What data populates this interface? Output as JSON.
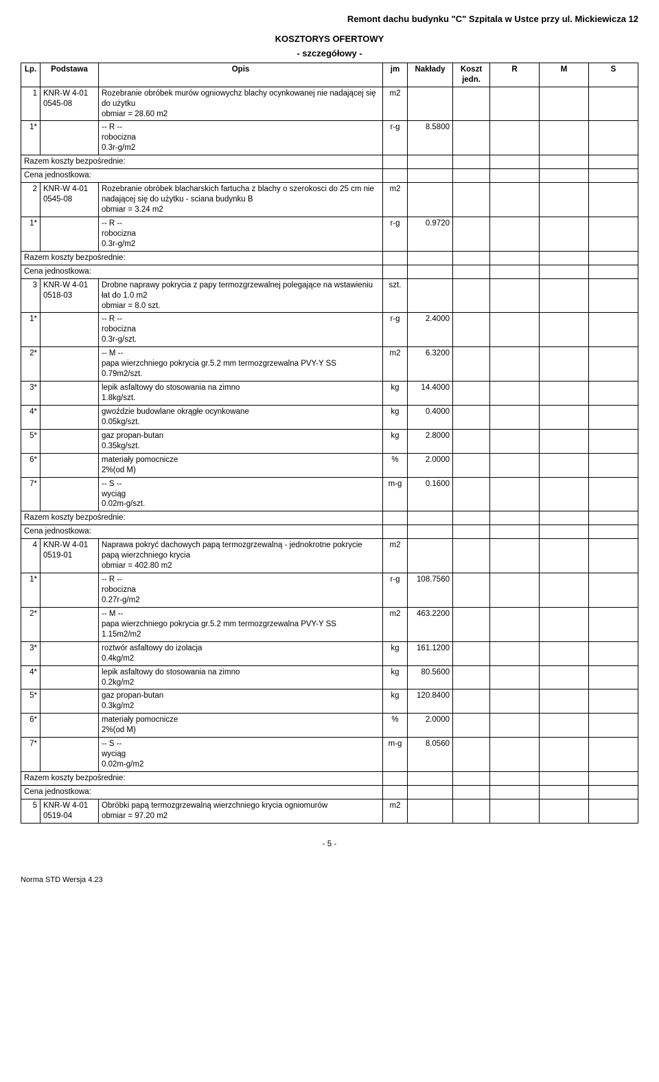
{
  "header": {
    "title": "Remont dachu budynku \"C\" Szpitala w Ustce przy ul. Mickiewicza 12",
    "subtitle1": "KOSZTORYS OFERTOWY",
    "subtitle2": "- szczegółowy -"
  },
  "columns": {
    "lp": "Lp.",
    "podstawa": "Podstawa",
    "opis": "Opis",
    "jm": "jm",
    "naklady": "Nakłady",
    "koszt_jedn": "Koszt jedn.",
    "r": "R",
    "m": "M",
    "s": "S"
  },
  "labels": {
    "razem": "Razem koszty bezpośrednie:",
    "cena": "Cena jednostkowa:",
    "r_hdr": "-- R --",
    "m_hdr": "-- M --",
    "s_hdr": "-- S --"
  },
  "rows": [
    {
      "lp": "1",
      "pod_l1": "KNR-W 4-01",
      "pod_l2": "0545-08",
      "opis": "Rozebranie obróbek murów ogniowychz blachy ocynkowanej nie nadającej się do użytku",
      "obmiar": "obmiar  = 28.60 m2",
      "jm": "m2"
    },
    {
      "sec": "R",
      "items": [
        {
          "lp": "1*",
          "opis": "robocizna",
          "rate": "0.3r-g/m2",
          "jm": "r-g",
          "nak": "8.5800"
        }
      ]
    },
    {
      "razem_cena": true
    },
    {
      "lp": "2",
      "pod_l1": "KNR-W 4-01",
      "pod_l2": "0545-08",
      "opis": "Rozebranie obróbek blacharskich fartucha z blachy o szerokosci do 25 cm nie nadającej się do użytku - sciana budynku B",
      "obmiar": "obmiar  = 3.24 m2",
      "jm": "m2"
    },
    {
      "sec": "R",
      "items": [
        {
          "lp": "1*",
          "opis": "robocizna",
          "rate": "0.3r-g/m2",
          "jm": "r-g",
          "nak": "0.9720"
        }
      ]
    },
    {
      "razem_cena": true
    },
    {
      "lp": "3",
      "pod_l1": "KNR-W 4-01",
      "pod_l2": "0518-03",
      "opis": "Drobne naprawy pokrycia z papy termozgrzewalnej polegające na wstawieniu łat do 1.0 m2",
      "obmiar": "obmiar  = 8.0 szt.",
      "jm": "szt."
    },
    {
      "sec": "R",
      "items": [
        {
          "lp": "1*",
          "opis": "robocizna",
          "rate": "0.3r-g/szt.",
          "jm": "r-g",
          "nak": "2.4000"
        }
      ]
    },
    {
      "sec": "M",
      "items": [
        {
          "lp": "2*",
          "opis": "papa wierzchniego pokrycia gr.5.2 mm termozgrzewalna PVY-Y SS",
          "rate": "0.79m2/szt.",
          "jm": "m2",
          "nak": "6.3200"
        },
        {
          "lp": "3*",
          "opis": "lepik asfaltowy do stosowania na zimno",
          "rate": "1.8kg/szt.",
          "jm": "kg",
          "nak": "14.4000"
        },
        {
          "lp": "4*",
          "opis": "gwoździe budowlane okrągłe ocynkowane",
          "rate": "0.05kg/szt.",
          "jm": "kg",
          "nak": "0.4000"
        },
        {
          "lp": "5*",
          "opis": "gaz propan-butan",
          "rate": "0.35kg/szt.",
          "jm": "kg",
          "nak": "2.8000"
        },
        {
          "lp": "6*",
          "opis": "materiały pomocnicze",
          "rate": "2%(od M)",
          "jm": "%",
          "nak": "2.0000"
        }
      ]
    },
    {
      "sec": "S",
      "items": [
        {
          "lp": "7*",
          "opis": "wyciąg",
          "rate": "0.02m-g/szt.",
          "jm": "m-g",
          "nak": "0.1600"
        }
      ]
    },
    {
      "razem_cena": true
    },
    {
      "lp": "4",
      "pod_l1": "KNR-W 4-01",
      "pod_l2": "0519-01",
      "opis": "Naprawa pokryć dachowych papą termozgrzewalną - jednokrotne pokrycie papą wierzchniego krycia",
      "obmiar": "obmiar  = 402.80 m2",
      "jm": "m2"
    },
    {
      "sec": "R",
      "items": [
        {
          "lp": "1*",
          "opis": "robocizna",
          "rate": "0.27r-g/m2",
          "jm": "r-g",
          "nak": "108.7560"
        }
      ]
    },
    {
      "sec": "M",
      "items": [
        {
          "lp": "2*",
          "opis": "papa wierzchniego pokrycia gr.5.2 mm termozgrzewalna PVY-Y SS",
          "rate": "1.15m2/m2",
          "jm": "m2",
          "nak": "463.2200"
        },
        {
          "lp": "3*",
          "opis": "roztwór asfaltowy do izolacja",
          "rate": "0.4kg/m2",
          "jm": "kg",
          "nak": "161.1200"
        },
        {
          "lp": "4*",
          "opis": "lepik asfaltowy do stosowania na zimno",
          "rate": "0.2kg/m2",
          "jm": "kg",
          "nak": "80.5600"
        },
        {
          "lp": "5*",
          "opis": "gaz propan-butan",
          "rate": "0.3kg/m2",
          "jm": "kg",
          "nak": "120.8400"
        },
        {
          "lp": "6*",
          "opis": "materiały pomocnicze",
          "rate": "2%(od M)",
          "jm": "%",
          "nak": "2.0000"
        }
      ]
    },
    {
      "sec": "S",
      "items": [
        {
          "lp": "7*",
          "opis": "wyciąg",
          "rate": "0.02m-g/m2",
          "jm": "m-g",
          "nak": "8.0560"
        }
      ]
    },
    {
      "razem_cena": true
    },
    {
      "lp": "5",
      "pod_l1": "KNR-W 4-01",
      "pod_l2": "0519-04",
      "opis": "Obróbki papą termozgrzewalną wierzchniego krycia ogniomurów",
      "obmiar": "obmiar  = 97.20 m2",
      "jm": "m2"
    }
  ],
  "footer": {
    "page": "- 5 -",
    "norma": "Norma STD Wersja 4.23"
  },
  "style": {
    "font_family": "Arial",
    "font_size_pt": 9,
    "border_color": "#000000",
    "background_color": "#ffffff",
    "text_color": "#000000"
  }
}
